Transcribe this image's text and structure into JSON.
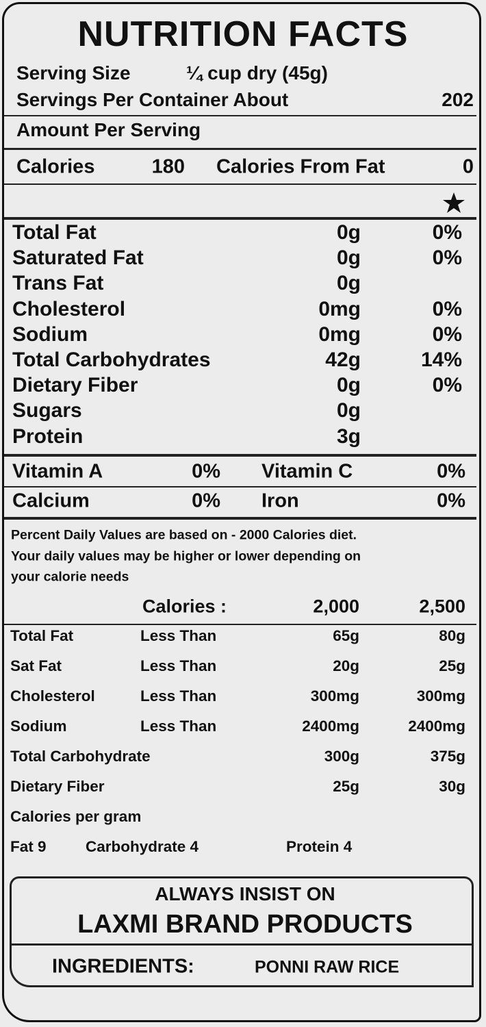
{
  "title": "NUTRITION FACTS",
  "serving": {
    "size_label": "Serving Size",
    "size_value": "¼ cup dry (45g)",
    "per_container_label": "Servings Per Container About",
    "per_container_value": "202"
  },
  "amount_per_serving": "Amount Per Serving",
  "calories": {
    "label": "Calories",
    "value": "180",
    "from_fat_label": "Calories From Fat",
    "from_fat_value": "0"
  },
  "nutrients": [
    {
      "name": "Total Fat",
      "amount": "0g",
      "dv": "0%"
    },
    {
      "name": "Saturated Fat",
      "amount": "0g",
      "dv": "0%"
    },
    {
      "name": "Trans Fat",
      "amount": "0g"
    },
    {
      "name": "Cholesterol",
      "amount": "0mg",
      "dv": "0%"
    },
    {
      "name": "Sodium",
      "amount": "0mg",
      "dv": "0%"
    },
    {
      "name": "Total Carbohydrates",
      "amount": "42g",
      "dv": "14%"
    },
    {
      "name": "Dietary Fiber",
      "amount": "0g",
      "dv": "0%"
    },
    {
      "name": "Sugars",
      "amount": "0g"
    },
    {
      "name": "Protein",
      "amount": "3g"
    }
  ],
  "vitamins": [
    [
      {
        "name": "Vitamin A",
        "dv": "0%"
      },
      {
        "name": "Vitamin C",
        "dv": "0%"
      }
    ],
    [
      {
        "name": "Calcium",
        "dv": "0%"
      },
      {
        "name": "Iron",
        "dv": "0%"
      }
    ]
  ],
  "footnote": [
    "Percent Daily Values are based on - 2000 Calories diet.",
    "Your daily values may be higher or lower depending on",
    "your calorie needs"
  ],
  "daily_values": {
    "header": [
      "Calories :",
      "2,000",
      "2,500"
    ],
    "rows": [
      {
        "name": "Total Fat",
        "limit": "Less Than",
        "v2000": "65g",
        "v2500": "80g"
      },
      {
        "name": "Sat Fat",
        "limit": "Less Than",
        "v2000": "20g",
        "v2500": "25g"
      },
      {
        "name": "Cholesterol",
        "limit": "Less Than",
        "v2000": "300mg",
        "v2500": "300mg"
      },
      {
        "name": "Sodium",
        "limit": "Less Than",
        "v2000": "2400mg",
        "v2500": "2400mg"
      },
      {
        "name": "Total Carbohydrate",
        "v2000": "300g",
        "v2500": "375g"
      },
      {
        "name": "Dietary Fiber",
        "v2000": "25g",
        "v2500": "30g"
      }
    ]
  },
  "calories_per_gram": {
    "label": "Calories per gram",
    "items": [
      "Fat 9",
      "Carbohydrate 4",
      "Protein 4"
    ]
  },
  "brand": {
    "line1": "ALWAYS INSIST ON",
    "line2": "LAXMI BRAND PRODUCTS",
    "ingredients_label": "INGREDIENTS:",
    "ingredients_value": "PONNI RAW RICE"
  }
}
